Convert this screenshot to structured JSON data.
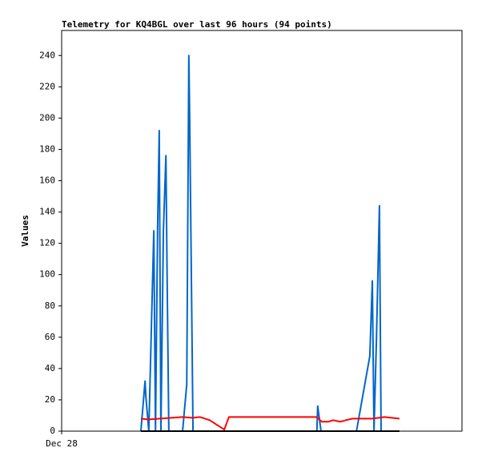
{
  "chart_data": {
    "type": "line",
    "title": "Telemetry for KQ4BGL over last 96 hours (94 points)",
    "y_label": "Values",
    "xlim": [
      0,
      96
    ],
    "xticks": [
      {
        "value": 0,
        "label": "Dec 28"
      }
    ],
    "ylim": [
      0,
      256
    ],
    "yticks": [
      0,
      20,
      40,
      60,
      80,
      100,
      120,
      140,
      160,
      180,
      200,
      220,
      240
    ],
    "series": [
      {
        "color": "#0066cc",
        "x": [
          19.0,
          20.0,
          20.2,
          20.9,
          22.1,
          22.5,
          23.0,
          23.4,
          23.8,
          24.4,
          25.0,
          25.3,
          25.7,
          29.0,
          30.0,
          30.5,
          30.7,
          31.5,
          61.2,
          61.4,
          62.2,
          70.7,
          73.9,
          74.5,
          74.9,
          75.5,
          76.2,
          76.6
        ],
        "values": [
          0,
          32,
          22,
          0,
          128,
          0,
          128,
          192,
          0,
          128,
          176,
          96,
          0,
          0,
          30,
          240,
          200,
          0,
          0,
          16,
          0,
          0,
          48,
          96,
          0,
          60,
          144,
          0
        ]
      },
      {
        "color": "#ff0000",
        "x": [
          19.0,
          20.7,
          23.6,
          29.0,
          31.3,
          33.2,
          35.5,
          39.0,
          40.1,
          61.1,
          62.4,
          63.9,
          65.1,
          66.8,
          68.2,
          69.7,
          74.5,
          77.4,
          81.0
        ],
        "values": [
          8,
          7.5,
          8,
          9,
          8.5,
          9,
          7,
          1,
          9,
          9,
          6,
          6,
          7,
          6,
          7,
          8,
          8,
          9,
          8
        ]
      },
      {
        "color": "#000000",
        "x": [
          19.0,
          81.0
        ],
        "values": [
          0,
          0
        ]
      }
    ]
  }
}
